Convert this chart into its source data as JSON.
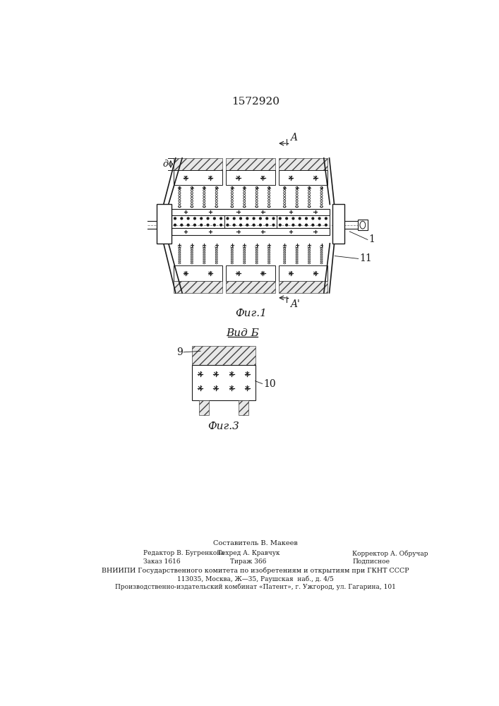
{
  "title": "1572920",
  "fig1_label": "Фиг.1",
  "fig3_label": "Фиг.3",
  "vid_label": "Вид Б",
  "label_A_top": "A",
  "label_A_bot": "A",
  "label_d": "д",
  "label_1": "1",
  "label_11": "11",
  "label_9": "9",
  "label_10": "10",
  "bg_color": "#ffffff",
  "line_color": "#1a1a1a",
  "footer_line1": "Составитель В. Макеев",
  "footer_line2a": "Редактор В. Бугренкова",
  "footer_line2b": "Техред А. Кравчук",
  "footer_line2c": "Корректор А. Обручар",
  "footer_line3a": "Заказ 1616",
  "footer_line3b": "Тираж 366",
  "footer_line3c": "Подписное",
  "footer_line4": "ВНИИПИ Государственного комитета по изобретениям и открытиям при ГКНТ СССР",
  "footer_line5": "113035, Москва, Ж—35, Раушская  наб., д. 4/5",
  "footer_line6": "Производственно-издательский комбинат «Патент», г. Ужгород, ул. Гагарина, 101"
}
